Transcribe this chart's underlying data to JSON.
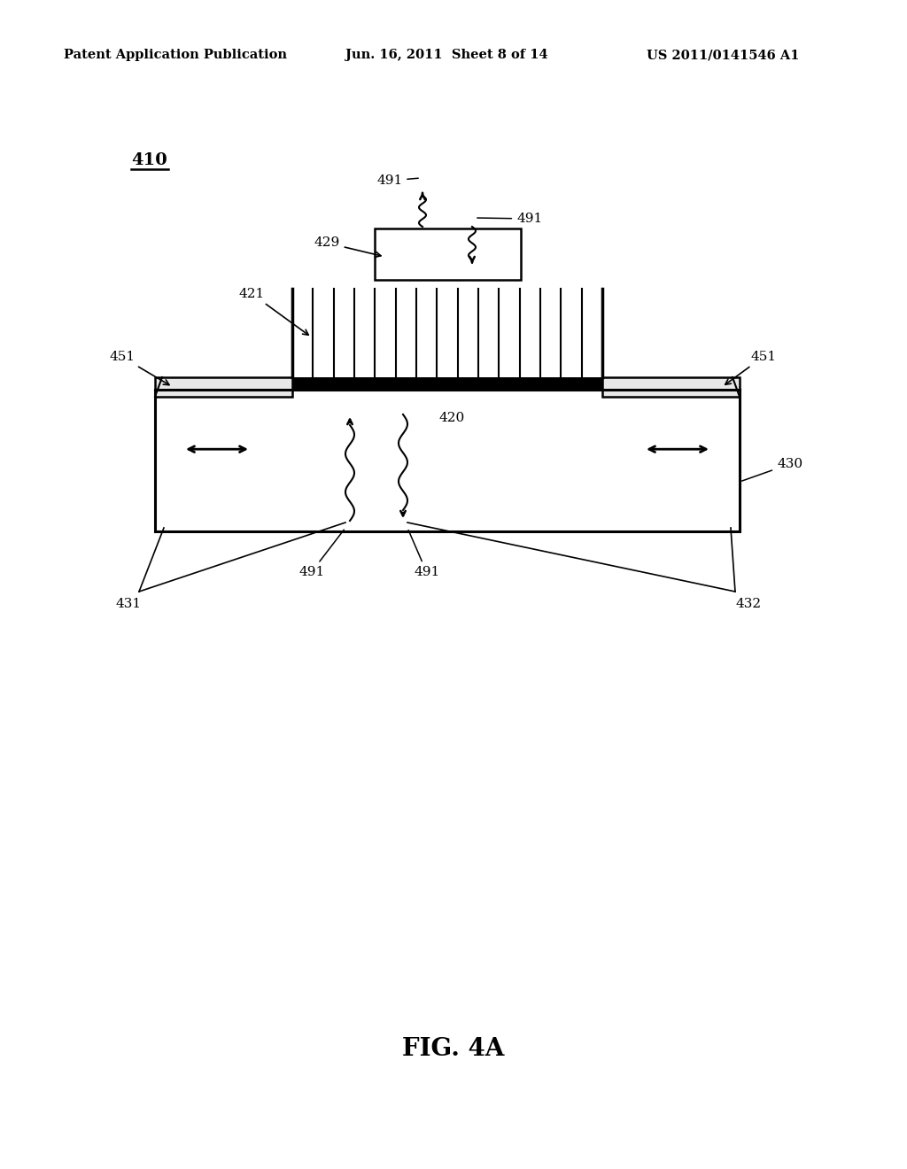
{
  "bg_color": "#ffffff",
  "header_left": "Patent Application Publication",
  "header_center": "Jun. 16, 2011  Sheet 8 of 14",
  "header_right": "US 2011/0141546 A1",
  "figure_label": "FIG. 4A",
  "label_410": "410",
  "label_421": "421",
  "label_420": "420",
  "label_429": "429",
  "label_430": "430",
  "label_431": "431",
  "label_432": "432",
  "label_451a": "451",
  "label_451b": "451",
  "label_491_1": "491",
  "label_491_2": "491",
  "label_491_3": "491",
  "label_491_4": "491"
}
